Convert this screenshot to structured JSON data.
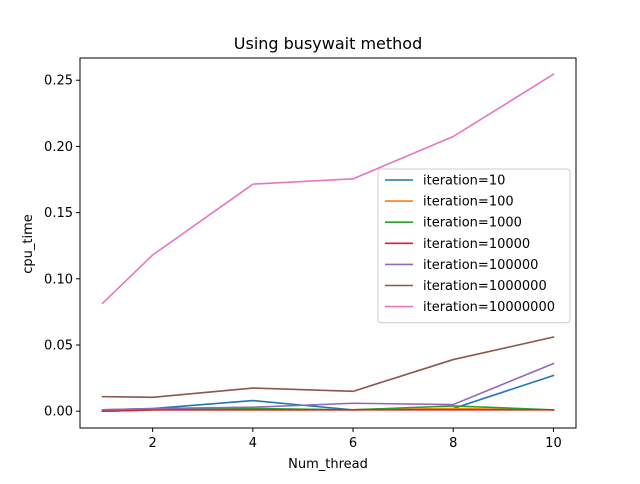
{
  "chart_data": {
    "type": "line",
    "title": "Using busywait method",
    "xlabel": "Num_thread",
    "ylabel": "cpu_time",
    "x": [
      1,
      2,
      4,
      6,
      8,
      10
    ],
    "xlim": [
      0.55,
      10.45
    ],
    "ylim": [
      -0.0127,
      0.2668
    ],
    "xticks": [
      2,
      4,
      6,
      8,
      10
    ],
    "xtick_labels": [
      "2",
      "4",
      "6",
      "8",
      "10"
    ],
    "yticks": [
      0.0,
      0.05,
      0.1,
      0.15,
      0.2,
      0.25
    ],
    "ytick_labels": [
      "0.00",
      "0.05",
      "0.10",
      "0.15",
      "0.20",
      "0.25"
    ],
    "grid": false,
    "legend_position": "center-right",
    "series": [
      {
        "name": "iteration=10",
        "color": "#1f77b4",
        "values": [
          0.001,
          0.002,
          0.008,
          0.001,
          0.002,
          0.027
        ]
      },
      {
        "name": "iteration=100",
        "color": "#ff7f0e",
        "values": [
          0.0,
          0.001,
          0.001,
          0.001,
          0.002,
          0.001
        ]
      },
      {
        "name": "iteration=1000",
        "color": "#2ca02c",
        "values": [
          0.0,
          0.001,
          0.002,
          0.001,
          0.004,
          0.001
        ]
      },
      {
        "name": "iteration=10000",
        "color": "#d62728",
        "values": [
          0.0,
          0.001,
          0.001,
          0.001,
          0.001,
          0.001
        ]
      },
      {
        "name": "iteration=100000",
        "color": "#9467bd",
        "values": [
          0.001,
          0.002,
          0.003,
          0.006,
          0.005,
          0.036
        ]
      },
      {
        "name": "iteration=1000000",
        "color": "#8c564b",
        "values": [
          0.011,
          0.0105,
          0.0175,
          0.015,
          0.039,
          0.056
        ]
      },
      {
        "name": "iteration=10000000",
        "color": "#e377c2",
        "values": [
          0.0815,
          0.118,
          0.1715,
          0.1755,
          0.2075,
          0.2545
        ]
      }
    ]
  }
}
